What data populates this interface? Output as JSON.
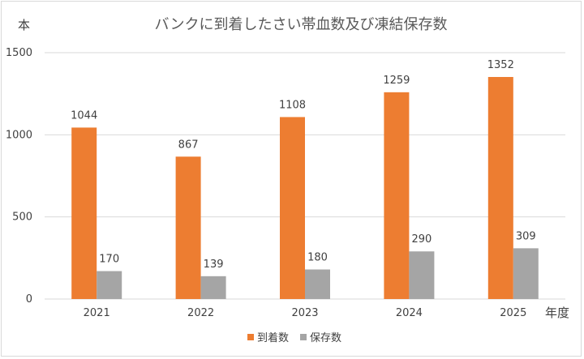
{
  "chart_data": {
    "type": "bar",
    "title": "バンクに到着したさい帯血数及び凍結保存数",
    "ylabel": "本",
    "xlabel": "年度",
    "categories": [
      "2021",
      "2022",
      "2023",
      "2024",
      "2025"
    ],
    "series": [
      {
        "name": "到着数",
        "values": [
          1044,
          867,
          1108,
          1259,
          1352
        ],
        "color": "#ED7D31"
      },
      {
        "name": "保存数",
        "values": [
          170,
          139,
          180,
          290,
          309
        ],
        "color": "#A5A5A5"
      }
    ],
    "ylim": [
      0,
      1500
    ],
    "yticks": [
      "0",
      "500",
      "1000",
      "1500"
    ],
    "grid": true,
    "gridColor": "#d9d9d9",
    "legend": "bottom"
  }
}
